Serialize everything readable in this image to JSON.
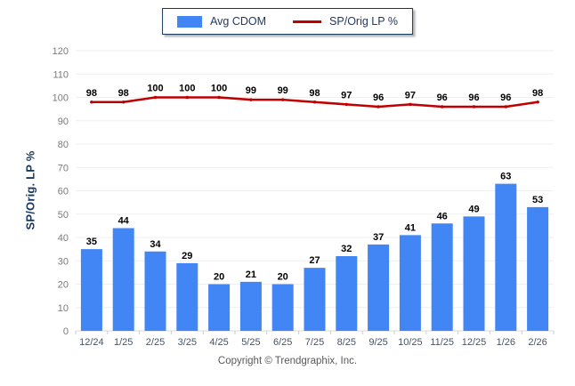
{
  "chart_data": {
    "type": "bar",
    "categories": [
      "12/24",
      "1/25",
      "2/25",
      "3/25",
      "4/25",
      "5/25",
      "6/25",
      "7/25",
      "8/25",
      "9/25",
      "10/25",
      "11/25",
      "12/25",
      "1/26",
      "2/26"
    ],
    "series": [
      {
        "name": "Avg CDOM",
        "type": "bar",
        "color": "#4285f4",
        "values": [
          35,
          44,
          34,
          29,
          20,
          21,
          20,
          27,
          32,
          37,
          41,
          46,
          49,
          63,
          53
        ]
      },
      {
        "name": "SP/Orig LP %",
        "type": "line",
        "color": "#c00000",
        "values": [
          98,
          98,
          100,
          100,
          100,
          99,
          99,
          98,
          97,
          96,
          97,
          96,
          96,
          96,
          98
        ]
      }
    ],
    "title": "",
    "xlabel": "",
    "ylabel": "SP/Orig. LP %",
    "ylim": [
      0,
      120
    ],
    "ytick_step": 10,
    "grid": true,
    "legend_position": "top-center",
    "grid_color": "#efefef",
    "axis_color": "#d9d9d9",
    "tick_label_color": "#7a7a7a",
    "x_label_color": "#44546a",
    "data_label_color": "#000000"
  },
  "footer": {
    "copyright": "Copyright © Trendgraphix, Inc."
  }
}
